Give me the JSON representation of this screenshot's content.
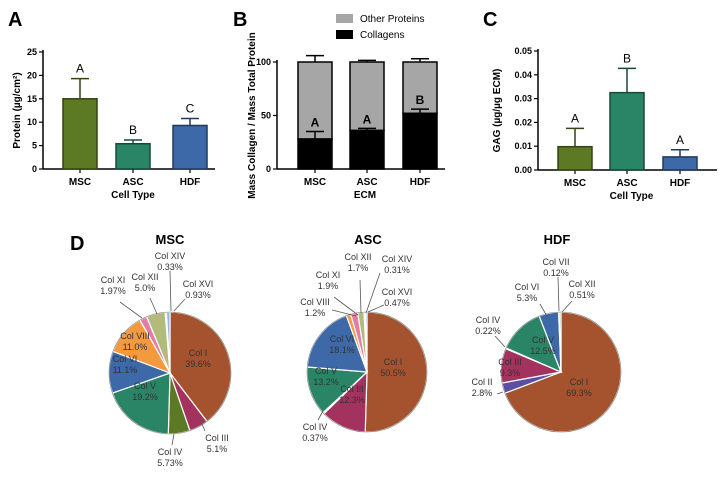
{
  "chart_data": [
    {
      "panel": "A",
      "type": "bar",
      "categories": [
        "MSC",
        "ASC",
        "HDF"
      ],
      "values": [
        15.0,
        5.4,
        9.3
      ],
      "errors": [
        4.3,
        0.8,
        1.5
      ],
      "significance": [
        "A",
        "B",
        "C"
      ],
      "colors": [
        "#5c7a24",
        "#2a8566",
        "#3d69a8"
      ],
      "ylabel": "Protein (µg/cm²)",
      "xlabel": "Cell Type",
      "ylim": [
        0,
        25
      ],
      "yticks": [
        "0",
        "5",
        "10",
        "15",
        "20",
        "25"
      ]
    },
    {
      "panel": "B",
      "type": "stacked-bar",
      "categories": [
        "MSC",
        "ASC",
        "HDF"
      ],
      "series": [
        {
          "name": "Collagens",
          "values": [
            28,
            36,
            52
          ],
          "errors": [
            7,
            2,
            4
          ],
          "color": "#000000"
        },
        {
          "name": "Other Proteins",
          "values": [
            72,
            64,
            48
          ],
          "errors": [
            6,
            1.5,
            3
          ],
          "color": "#a6a6a6"
        }
      ],
      "significance": [
        "A",
        "A",
        "B"
      ],
      "ylabel": "Mass Collagen / Mass Total Protein",
      "xlabel": "ECM",
      "ylim": [
        0,
        100
      ],
      "yticks": [
        "0",
        "50",
        "100"
      ],
      "legend_position": "top"
    },
    {
      "panel": "C",
      "type": "bar",
      "categories": [
        "MSC",
        "ASC",
        "HDF"
      ],
      "values": [
        0.0098,
        0.0325,
        0.0055
      ],
      "errors": [
        0.0077,
        0.0102,
        0.003
      ],
      "significance": [
        "A",
        "B",
        "A"
      ],
      "colors": [
        "#5c7a24",
        "#2a8566",
        "#3d69a8"
      ],
      "ylabel": "GAG (µg/µg ECM)",
      "xlabel": "Cell Type",
      "ylim": [
        0,
        0.05
      ],
      "yticks": [
        "0.00",
        "0.01",
        "0.02",
        "0.03",
        "0.04",
        "0.05"
      ]
    },
    {
      "panel": "D",
      "type": "pie",
      "pies": [
        {
          "title": "MSC",
          "slices": [
            {
              "label": "Col I",
              "value": 39.6,
              "pct": "39.6%",
              "color": "#a5532f"
            },
            {
              "label": "Col III",
              "value": 5.1,
              "pct": "5.1%",
              "color": "#a3325f"
            },
            {
              "label": "Col IV",
              "value": 5.73,
              "pct": "5.73%",
              "color": "#5c7a24"
            },
            {
              "label": "Col V",
              "value": 19.2,
              "pct": "19.2%",
              "color": "#2a8566"
            },
            {
              "label": "Col VI",
              "value": 11.1,
              "pct": "11.1%",
              "color": "#3d69a8"
            },
            {
              "label": "Col VIII",
              "value": 11.0,
              "pct": "11.0%",
              "color": "#f39a3e"
            },
            {
              "label": "Col XI",
              "value": 1.97,
              "pct": "1.97%",
              "color": "#e07ea6"
            },
            {
              "label": "Col XII",
              "value": 5.0,
              "pct": "5.0%",
              "color": "#b3bb7a"
            },
            {
              "label": "Col XIV",
              "value": 0.33,
              "pct": "0.33%",
              "color": "#c9c9c9"
            },
            {
              "label": "Col XVI",
              "value": 0.93,
              "pct": "0.93%",
              "color": "#8cb6e3"
            }
          ]
        },
        {
          "title": "ASC",
          "slices": [
            {
              "label": "Col I",
              "value": 50.5,
              "pct": "50.5%",
              "color": "#a5532f"
            },
            {
              "label": "Col III",
              "value": 12.3,
              "pct": "12.3%",
              "color": "#a3325f"
            },
            {
              "label": "Col IV",
              "value": 0.37,
              "pct": "0.37%",
              "color": "#5c7a24"
            },
            {
              "label": "Col V",
              "value": 13.2,
              "pct": "13.2%",
              "color": "#2a8566"
            },
            {
              "label": "Col VI",
              "value": 18.1,
              "pct": "18.1%",
              "color": "#3d69a8"
            },
            {
              "label": "Col VIII",
              "value": 1.2,
              "pct": "1.2%",
              "color": "#f39a3e"
            },
            {
              "label": "Col XI",
              "value": 1.9,
              "pct": "1.9%",
              "color": "#e07ea6"
            },
            {
              "label": "Col XII",
              "value": 1.7,
              "pct": "1.7%",
              "color": "#b3bb7a"
            },
            {
              "label": "Col XIV",
              "value": 0.31,
              "pct": "0.31%",
              "color": "#c9c9c9"
            },
            {
              "label": "Col XVI",
              "value": 0.47,
              "pct": "0.47%",
              "color": "#8cb6e3"
            }
          ]
        },
        {
          "title": "HDF",
          "slices": [
            {
              "label": "Col I",
              "value": 69.3,
              "pct": "69.3%",
              "color": "#a5532f"
            },
            {
              "label": "Col II",
              "value": 2.8,
              "pct": "2.8%",
              "color": "#5a4fa3"
            },
            {
              "label": "Col III",
              "value": 9.3,
              "pct": "9.3%",
              "color": "#a3325f"
            },
            {
              "label": "Col IV",
              "value": 0.22,
              "pct": "0.22%",
              "color": "#5c7a24"
            },
            {
              "label": "Col V",
              "value": 12.5,
              "pct": "12.5%",
              "color": "#2a8566"
            },
            {
              "label": "Col VI",
              "value": 5.3,
              "pct": "5.3%",
              "color": "#3d69a8"
            },
            {
              "label": "Col VII",
              "value": 0.12,
              "pct": "0.12%",
              "color": "#e8e3a8"
            },
            {
              "label": "Col XII",
              "value": 0.51,
              "pct": "0.51%",
              "color": "#b3bb7a"
            }
          ]
        }
      ]
    }
  ]
}
